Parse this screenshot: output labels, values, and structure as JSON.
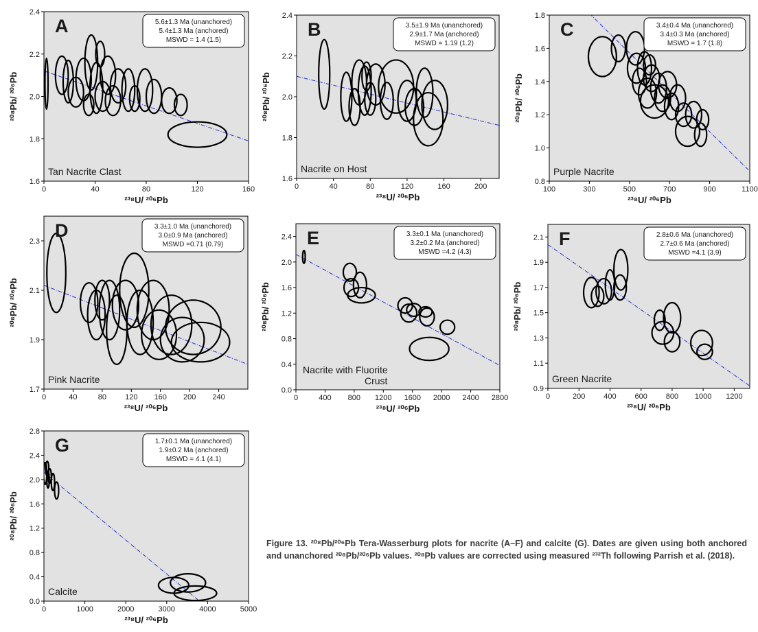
{
  "figure": {
    "caption": "Figure 13. ²⁰⁸Pb/²⁰⁶Pb Tera-Wasserburg plots for nacrite (A–F) and calcite (G). Dates are given using both anchored and unanchored ²⁰⁸Pb/²⁰⁶Pb values. ²⁰⁸Pb values are corrected using measured ²³²Th following Parrish et al. (2018)."
  },
  "colors": {
    "plot_bg": "#e2e2e2",
    "ellipse": "#000000",
    "regression_line": "#2233cc",
    "text": "#1a1a1a"
  },
  "chart_data": [
    {
      "panel": "A",
      "type": "scatter",
      "sample_label": "Tan Nacrite Clast",
      "xlabel": "²³⁸U/ ²⁰⁶Pb",
      "ylabel": "²⁰⁸Pb/ ²⁰⁶Pb",
      "xlim": [
        0,
        160
      ],
      "ylim": [
        1.6,
        2.4
      ],
      "xticks": [
        "0",
        "40",
        "80",
        "120",
        "160"
      ],
      "yticks": [
        "1.6",
        "1.8",
        "2.0",
        "2.2",
        "2.4"
      ],
      "legend_lines": [
        "5.6±1.3 Ma (unanchored)",
        "5.4±1.3 Ma (anchored)",
        "MSWD = 1.4 (1.5)"
      ],
      "regression": {
        "x": [
          0,
          160
        ],
        "y": [
          2.12,
          1.79
        ]
      },
      "ellipses": [
        {
          "x": 2,
          "y": 2.06,
          "rx": 1.2,
          "ry": 0.12
        },
        {
          "x": 14,
          "y": 2.1,
          "rx": 5,
          "ry": 0.09
        },
        {
          "x": 19,
          "y": 2.07,
          "rx": 4,
          "ry": 0.1
        },
        {
          "x": 25,
          "y": 2.02,
          "rx": 6,
          "ry": 0.07
        },
        {
          "x": 31,
          "y": 2.08,
          "rx": 6,
          "ry": 0.1
        },
        {
          "x": 37,
          "y": 2.16,
          "rx": 5,
          "ry": 0.13
        },
        {
          "x": 41,
          "y": 2.04,
          "rx": 5,
          "ry": 0.12
        },
        {
          "x": 46,
          "y": 2.0,
          "rx": 6,
          "ry": 0.07
        },
        {
          "x": 50,
          "y": 2.1,
          "rx": 6,
          "ry": 0.09
        },
        {
          "x": 54,
          "y": 1.98,
          "rx": 6,
          "ry": 0.07
        },
        {
          "x": 58,
          "y": 2.05,
          "rx": 6,
          "ry": 0.08
        },
        {
          "x": 66,
          "y": 2.03,
          "rx": 5,
          "ry": 0.1
        },
        {
          "x": 71,
          "y": 1.99,
          "rx": 4,
          "ry": 0.06
        },
        {
          "x": 79,
          "y": 2.03,
          "rx": 6,
          "ry": 0.1
        },
        {
          "x": 86,
          "y": 2.0,
          "rx": 6,
          "ry": 0.08
        },
        {
          "x": 98,
          "y": 1.98,
          "rx": 6,
          "ry": 0.06
        },
        {
          "x": 107,
          "y": 1.96,
          "rx": 5,
          "ry": 0.05
        },
        {
          "x": 120,
          "y": 1.82,
          "rx": 23,
          "ry": 0.06
        },
        {
          "x": 44,
          "y": 2.2,
          "rx": 3.5,
          "ry": 0.06
        },
        {
          "x": 35,
          "y": 1.96,
          "rx": 4,
          "ry": 0.05
        }
      ]
    },
    {
      "panel": "B",
      "type": "scatter",
      "sample_label": "Nacrite on Host",
      "xlabel": "²³⁸U/ ²⁰⁶Pb",
      "ylabel": "²⁰⁸Pb/ ²⁰⁶Pb",
      "xlim": [
        0,
        220
      ],
      "ylim": [
        1.6,
        2.4
      ],
      "xticks": [
        "0",
        "40",
        "80",
        "120",
        "160",
        "200"
      ],
      "yticks": [
        "1.6",
        "1.8",
        "2.0",
        "2.2",
        "2.4"
      ],
      "legend_lines": [
        "3.5±1.9 Ma (unanchored)",
        "2.9±1.7 Ma (anchored)",
        "MSWD = 1.19 (1.2)"
      ],
      "regression": {
        "x": [
          0,
          220
        ],
        "y": [
          2.1,
          1.86
        ]
      },
      "ellipses": [
        {
          "x": 30,
          "y": 2.11,
          "rx": 6,
          "ry": 0.17
        },
        {
          "x": 54,
          "y": 2.0,
          "rx": 6,
          "ry": 0.12
        },
        {
          "x": 63,
          "y": 1.95,
          "rx": 6,
          "ry": 0.09
        },
        {
          "x": 68,
          "y": 2.07,
          "rx": 8,
          "ry": 0.11
        },
        {
          "x": 74,
          "y": 2.03,
          "rx": 7,
          "ry": 0.12
        },
        {
          "x": 80,
          "y": 1.99,
          "rx": 6,
          "ry": 0.08
        },
        {
          "x": 86,
          "y": 2.06,
          "rx": 10,
          "ry": 0.1
        },
        {
          "x": 98,
          "y": 1.98,
          "rx": 7,
          "ry": 0.09
        },
        {
          "x": 108,
          "y": 2.05,
          "rx": 19,
          "ry": 0.13
        },
        {
          "x": 120,
          "y": 1.98,
          "rx": 10,
          "ry": 0.1
        },
        {
          "x": 128,
          "y": 1.95,
          "rx": 10,
          "ry": 0.09
        },
        {
          "x": 139,
          "y": 2.02,
          "rx": 9,
          "ry": 0.12
        },
        {
          "x": 143,
          "y": 1.89,
          "rx": 16,
          "ry": 0.13
        },
        {
          "x": 150,
          "y": 1.96,
          "rx": 14,
          "ry": 0.12
        },
        {
          "x": 76,
          "y": 2.1,
          "rx": 5,
          "ry": 0.07
        }
      ]
    },
    {
      "panel": "C",
      "type": "scatter",
      "sample_label": "Purple Nacrite",
      "xlabel": "²³⁸U/ ²⁰⁶Pb",
      "ylabel": "²⁰⁸Pb/ ²⁰⁶Pb",
      "xlim": [
        100,
        1100
      ],
      "ylim": [
        0.8,
        1.8
      ],
      "xticks": [
        "100",
        "300",
        "500",
        "700",
        "900",
        "1100"
      ],
      "yticks": [
        "0.8",
        "1.0",
        "1.2",
        "1.4",
        "1.6",
        "1.8"
      ],
      "legend_lines": [
        "3.4±0.4 Ma (unanchored)",
        "3.4±0.3 Ma (anchored)",
        "MSWD = 1.7 (1.8)"
      ],
      "regression": {
        "x": [
          300,
          1100
        ],
        "y": [
          1.81,
          0.86
        ]
      },
      "ellipses": [
        {
          "x": 365,
          "y": 1.55,
          "rx": 70,
          "ry": 0.12
        },
        {
          "x": 445,
          "y": 1.6,
          "rx": 35,
          "ry": 0.08
        },
        {
          "x": 530,
          "y": 1.6,
          "rx": 45,
          "ry": 0.1
        },
        {
          "x": 535,
          "y": 1.48,
          "rx": 45,
          "ry": 0.09
        },
        {
          "x": 550,
          "y": 1.4,
          "rx": 35,
          "ry": 0.08
        },
        {
          "x": 575,
          "y": 1.48,
          "rx": 35,
          "ry": 0.1
        },
        {
          "x": 590,
          "y": 1.33,
          "rx": 45,
          "ry": 0.09
        },
        {
          "x": 610,
          "y": 1.42,
          "rx": 40,
          "ry": 0.08
        },
        {
          "x": 625,
          "y": 1.28,
          "rx": 70,
          "ry": 0.1
        },
        {
          "x": 645,
          "y": 1.36,
          "rx": 40,
          "ry": 0.09
        },
        {
          "x": 665,
          "y": 1.3,
          "rx": 40,
          "ry": 0.08
        },
        {
          "x": 690,
          "y": 1.38,
          "rx": 45,
          "ry": 0.08
        },
        {
          "x": 710,
          "y": 1.25,
          "rx": 35,
          "ry": 0.08
        },
        {
          "x": 740,
          "y": 1.3,
          "rx": 40,
          "ry": 0.08
        },
        {
          "x": 770,
          "y": 1.2,
          "rx": 40,
          "ry": 0.07
        },
        {
          "x": 790,
          "y": 1.1,
          "rx": 60,
          "ry": 0.09
        },
        {
          "x": 820,
          "y": 1.2,
          "rx": 40,
          "ry": 0.08
        },
        {
          "x": 855,
          "y": 1.08,
          "rx": 30,
          "ry": 0.07
        },
        {
          "x": 865,
          "y": 1.17,
          "rx": 30,
          "ry": 0.06
        },
        {
          "x": 600,
          "y": 1.5,
          "rx": 30,
          "ry": 0.06
        }
      ]
    },
    {
      "panel": "D",
      "type": "scatter",
      "sample_label": "Pink Nacrite",
      "xlabel": "²³⁸U/ ²⁰⁶Pb",
      "ylabel": "²⁰⁸Pb/ ²⁰⁶Pb",
      "xlim": [
        0,
        280
      ],
      "ylim": [
        1.7,
        2.4
      ],
      "xticks": [
        "0",
        "40",
        "80",
        "120",
        "160",
        "200",
        "240"
      ],
      "yticks": [
        "1.7",
        "1.9",
        "2.1",
        "2.3"
      ],
      "legend_lines": [
        "3.3±1.0 Ma (unanchored)",
        "3.0±0.9 Ma (anchored)",
        "MSWD =0.71 (0.79)"
      ],
      "regression": {
        "x": [
          0,
          280
        ],
        "y": [
          2.12,
          1.8
        ]
      },
      "ellipses": [
        {
          "x": 17,
          "y": 2.17,
          "rx": 13,
          "ry": 0.16
        },
        {
          "x": 62,
          "y": 2.05,
          "rx": 12,
          "ry": 0.08
        },
        {
          "x": 72,
          "y": 2.0,
          "rx": 12,
          "ry": 0.1
        },
        {
          "x": 80,
          "y": 2.06,
          "rx": 10,
          "ry": 0.08
        },
        {
          "x": 90,
          "y": 2.02,
          "rx": 14,
          "ry": 0.12
        },
        {
          "x": 100,
          "y": 1.94,
          "rx": 14,
          "ry": 0.14
        },
        {
          "x": 112,
          "y": 2.04,
          "rx": 18,
          "ry": 0.1
        },
        {
          "x": 124,
          "y": 2.1,
          "rx": 20,
          "ry": 0.15
        },
        {
          "x": 132,
          "y": 1.97,
          "rx": 18,
          "ry": 0.13
        },
        {
          "x": 150,
          "y": 2.02,
          "rx": 22,
          "ry": 0.12
        },
        {
          "x": 158,
          "y": 1.92,
          "rx": 24,
          "ry": 0.1
        },
        {
          "x": 175,
          "y": 1.96,
          "rx": 28,
          "ry": 0.12
        },
        {
          "x": 190,
          "y": 1.9,
          "rx": 30,
          "ry": 0.09
        },
        {
          "x": 205,
          "y": 1.95,
          "rx": 38,
          "ry": 0.11
        },
        {
          "x": 215,
          "y": 1.89,
          "rx": 40,
          "ry": 0.08
        }
      ]
    },
    {
      "panel": "E",
      "type": "scatter",
      "sample_label": "Nacrite with Fluorite Crust",
      "xlabel": "²³⁸U/ ²⁰⁶Pb",
      "ylabel": "²⁰⁸Pb/ ²⁰⁶Pb",
      "xlim": [
        0,
        2800
      ],
      "ylim": [
        0.0,
        2.6
      ],
      "xticks": [
        "0",
        "400",
        "800",
        "1200",
        "1600",
        "2000",
        "2400",
        "2800"
      ],
      "yticks": [
        "0.0",
        "0.4",
        "0.8",
        "1.2",
        "1.6",
        "2.0",
        "2.4"
      ],
      "legend_lines": [
        "3.3±0.1 Ma (unanchored)",
        "3.2±0.2 Ma (anchored)",
        "MSWD =4.2 (4.3)"
      ],
      "regression": {
        "x": [
          0,
          2800
        ],
        "y": [
          2.12,
          0.38
        ]
      },
      "ellipses": [
        {
          "x": 110,
          "y": 2.08,
          "rx": 18,
          "ry": 0.1
        },
        {
          "x": 740,
          "y": 1.84,
          "rx": 90,
          "ry": 0.14
        },
        {
          "x": 760,
          "y": 1.6,
          "rx": 100,
          "ry": 0.14
        },
        {
          "x": 880,
          "y": 1.64,
          "rx": 90,
          "ry": 0.2
        },
        {
          "x": 900,
          "y": 1.48,
          "rx": 190,
          "ry": 0.12
        },
        {
          "x": 1500,
          "y": 1.32,
          "rx": 100,
          "ry": 0.12
        },
        {
          "x": 1550,
          "y": 1.2,
          "rx": 110,
          "ry": 0.14
        },
        {
          "x": 1620,
          "y": 1.25,
          "rx": 100,
          "ry": 0.1
        },
        {
          "x": 1800,
          "y": 1.14,
          "rx": 100,
          "ry": 0.14
        },
        {
          "x": 1830,
          "y": 0.64,
          "rx": 270,
          "ry": 0.18
        },
        {
          "x": 2080,
          "y": 0.98,
          "rx": 100,
          "ry": 0.11
        },
        {
          "x": 1780,
          "y": 1.22,
          "rx": 90,
          "ry": 0.08
        }
      ]
    },
    {
      "panel": "F",
      "type": "scatter",
      "sample_label": "Green Nacrite",
      "xlabel": "²³⁸U/ ²⁰⁶Pb",
      "ylabel": "²⁰⁸Pb/ ²⁰⁶Pb",
      "xlim": [
        0,
        1300
      ],
      "ylim": [
        0.9,
        2.2
      ],
      "xticks": [
        "0",
        "200",
        "400",
        "600",
        "800",
        "1000",
        "1200"
      ],
      "yticks": [
        "0.9",
        "1.1",
        "1.3",
        "1.5",
        "1.7",
        "1.9",
        "2.1"
      ],
      "legend_lines": [
        "2.8±0.6 Ma (unanchored)",
        "2.7±0.6 Ma (anchored)",
        "MSWD =4.1 (3.9)"
      ],
      "regression": {
        "x": [
          0,
          1300
        ],
        "y": [
          2.04,
          0.92
        ]
      },
      "ellipses": [
        {
          "x": 280,
          "y": 1.66,
          "rx": 50,
          "ry": 0.12
        },
        {
          "x": 320,
          "y": 1.63,
          "rx": 40,
          "ry": 0.08
        },
        {
          "x": 360,
          "y": 1.67,
          "rx": 50,
          "ry": 0.1
        },
        {
          "x": 400,
          "y": 1.72,
          "rx": 30,
          "ry": 0.12
        },
        {
          "x": 470,
          "y": 1.84,
          "rx": 45,
          "ry": 0.16
        },
        {
          "x": 465,
          "y": 1.7,
          "rx": 40,
          "ry": 0.1
        },
        {
          "x": 720,
          "y": 1.44,
          "rx": 35,
          "ry": 0.08
        },
        {
          "x": 740,
          "y": 1.34,
          "rx": 70,
          "ry": 0.09
        },
        {
          "x": 800,
          "y": 1.46,
          "rx": 55,
          "ry": 0.12
        },
        {
          "x": 800,
          "y": 1.27,
          "rx": 50,
          "ry": 0.08
        },
        {
          "x": 990,
          "y": 1.26,
          "rx": 70,
          "ry": 0.1
        },
        {
          "x": 1010,
          "y": 1.19,
          "rx": 50,
          "ry": 0.06
        }
      ]
    },
    {
      "panel": "G",
      "type": "scatter",
      "sample_label": "Calcite",
      "xlabel": "²³⁸U/ ²⁰⁶Pb",
      "ylabel": "²⁰⁸Pb/ ²⁰⁶Pb",
      "xlim": [
        0,
        5000
      ],
      "ylim": [
        0.0,
        2.8
      ],
      "xticks": [
        "0",
        "1000",
        "2000",
        "3000",
        "4000",
        "5000"
      ],
      "yticks": [
        "0.0",
        "0.4",
        "0.8",
        "1.2",
        "1.6",
        "2.0",
        "2.4",
        "2.8"
      ],
      "legend_lines": [
        "1.7±0.1 Ma (unanchored)",
        "1.9±0.2 Ma (anchored)",
        "MSWD = 4.1 (4.1)"
      ],
      "regression": {
        "x": [
          0,
          3800
        ],
        "y": [
          2.12,
          0.0
        ]
      },
      "ellipses": [
        {
          "x": 30,
          "y": 2.1,
          "rx": 40,
          "ry": 0.18
        },
        {
          "x": 80,
          "y": 2.18,
          "rx": 40,
          "ry": 0.12
        },
        {
          "x": 100,
          "y": 2.0,
          "rx": 30,
          "ry": 0.14
        },
        {
          "x": 140,
          "y": 2.06,
          "rx": 40,
          "ry": 0.12
        },
        {
          "x": 220,
          "y": 1.96,
          "rx": 40,
          "ry": 0.14
        },
        {
          "x": 310,
          "y": 1.82,
          "rx": 50,
          "ry": 0.14
        },
        {
          "x": 3170,
          "y": 0.26,
          "rx": 370,
          "ry": 0.13
        },
        {
          "x": 3520,
          "y": 0.3,
          "rx": 430,
          "ry": 0.15
        },
        {
          "x": 3700,
          "y": 0.13,
          "rx": 520,
          "ry": 0.12
        }
      ]
    }
  ]
}
